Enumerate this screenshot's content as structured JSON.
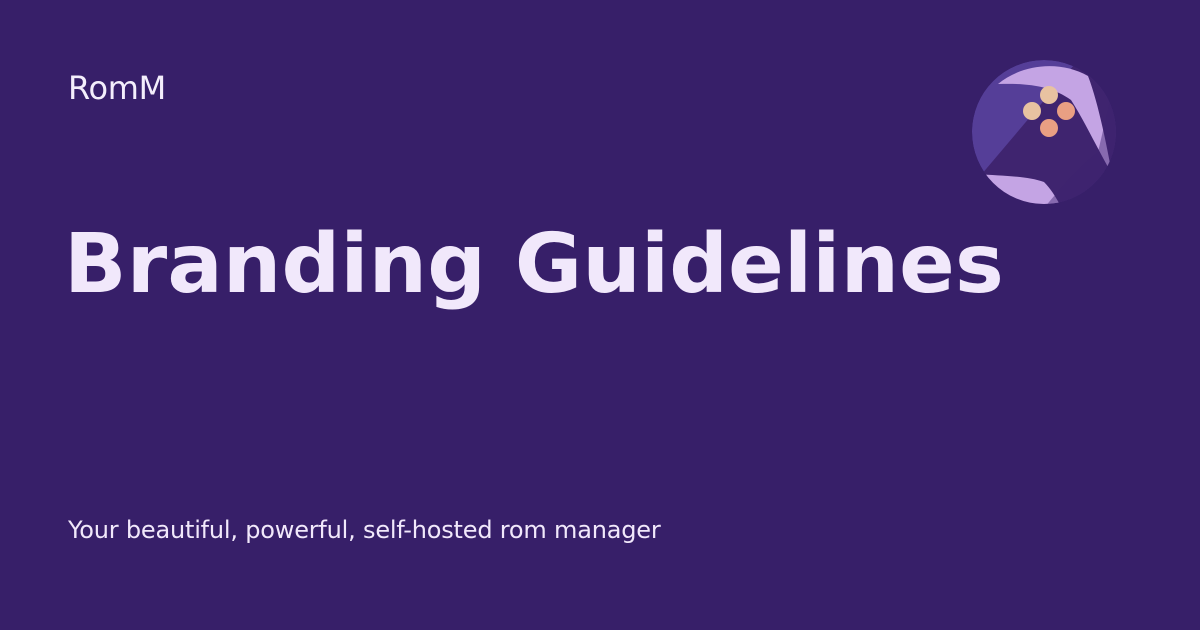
{
  "brand": {
    "name": "RomM"
  },
  "hero": {
    "title": "Branding Guidelines",
    "tagline": "Your beautiful, powerful, self-hosted rom manager"
  },
  "logo": {
    "icon": "romm-controller-logo-icon"
  },
  "colors": {
    "background": "#371f69",
    "text": "#f1e8fb",
    "logo_main": "#553e98",
    "logo_light": "#c4a4e4",
    "logo_button_1": "#e8c2a1",
    "logo_button_2": "#e99f83"
  }
}
